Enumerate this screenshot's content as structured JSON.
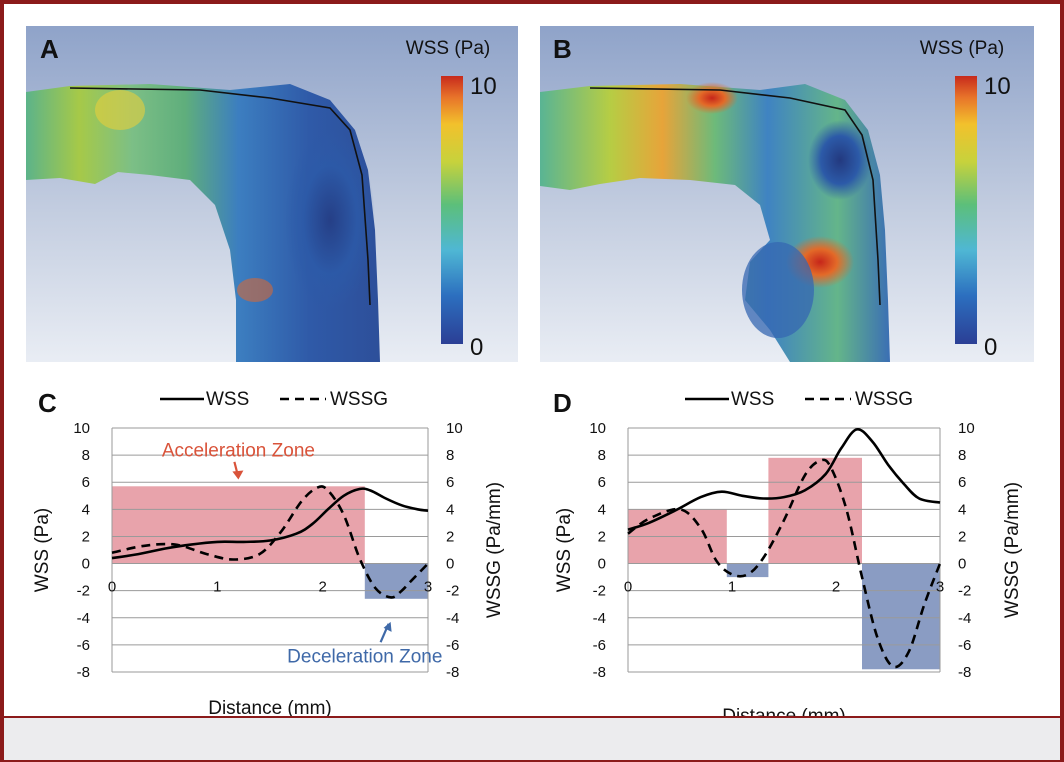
{
  "render_panels": [
    {
      "letter": "A",
      "colorbar_title": "WSS (Pa)",
      "colorbar_max": "10",
      "colorbar_min": "0"
    },
    {
      "letter": "B",
      "colorbar_title": "WSS (Pa)",
      "colorbar_max": "10",
      "colorbar_min": "0"
    }
  ],
  "colors": {
    "wss_line": "#000000",
    "acceleration_fill": "#e8a3ab",
    "deceleration_fill": "#8a9cc3",
    "acceleration_text": "#d9533a",
    "deceleration_text": "#3f69a8",
    "border": "#8b1a1a"
  },
  "chart_data": [
    {
      "panel": "C",
      "type": "line",
      "legend": [
        "WSS",
        "WSSG"
      ],
      "legend_placement": "top-center",
      "xlabel": "Distance (mm)",
      "ylabel": "WSS (Pa)",
      "y2label": "WSSG (Pa/mm)",
      "xlim": [
        0,
        3
      ],
      "ylim": [
        -8,
        10
      ],
      "y2lim": [
        -8,
        10
      ],
      "x_ticks": [
        "0",
        "1",
        "2",
        "3"
      ],
      "y_ticks": [
        "10",
        "8",
        "6",
        "4",
        "2",
        "0",
        "-2",
        "-4",
        "-6",
        "-8"
      ],
      "y2_ticks": [
        "10",
        "8",
        "6",
        "4",
        "2",
        "0",
        "-2",
        "-4",
        "-6",
        "-8"
      ],
      "grid": true,
      "series": [
        {
          "name": "WSS",
          "style": "solid",
          "x": [
            0,
            0.25,
            0.5,
            0.75,
            1.0,
            1.25,
            1.5,
            1.75,
            1.9,
            2.05,
            2.2,
            2.35,
            2.45,
            2.6,
            2.75,
            2.9,
            3.0
          ],
          "y": [
            0.4,
            0.7,
            1.1,
            1.4,
            1.6,
            1.6,
            1.7,
            2.2,
            2.9,
            4.0,
            5.0,
            5.5,
            5.4,
            4.8,
            4.3,
            4.0,
            3.9
          ]
        },
        {
          "name": "WSSG",
          "style": "dashed",
          "x": [
            0,
            0.3,
            0.6,
            0.9,
            1.15,
            1.4,
            1.6,
            1.8,
            1.95,
            2.05,
            2.2,
            2.35,
            2.5,
            2.65,
            2.75,
            2.85,
            3.0
          ],
          "y": [
            0.8,
            1.3,
            1.4,
            0.7,
            0.3,
            0.7,
            2.3,
            4.6,
            5.6,
            5.4,
            3.6,
            0.4,
            -1.8,
            -2.5,
            -2.0,
            -1.2,
            0.0
          ]
        }
      ],
      "zones": [
        {
          "label": "Acceleration Zone",
          "x": [
            0,
            2.4
          ],
          "y": [
            0,
            5.7
          ],
          "color": "acceleration"
        },
        {
          "label": "Deceleration Zone",
          "x": [
            2.4,
            3.0
          ],
          "y": [
            -2.6,
            0
          ],
          "color": "deceleration"
        }
      ]
    },
    {
      "panel": "D",
      "type": "line",
      "legend": [
        "WSS",
        "WSSG"
      ],
      "legend_placement": "top-center",
      "xlabel": "Distance (mm)",
      "ylabel": "WSS (Pa)",
      "y2label": "WSSG (Pa/mm)",
      "xlim": [
        0,
        3
      ],
      "ylim": [
        -8,
        10
      ],
      "y2lim": [
        -8,
        10
      ],
      "x_ticks": [
        "0",
        "1",
        "2",
        "3"
      ],
      "y_ticks": [
        "10",
        "8",
        "6",
        "4",
        "2",
        "0",
        "-2",
        "-4",
        "-6",
        "-8"
      ],
      "y2_ticks": [
        "10",
        "8",
        "6",
        "4",
        "2",
        "0",
        "-2",
        "-4",
        "-6",
        "-8"
      ],
      "grid": true,
      "series": [
        {
          "name": "WSS",
          "style": "solid",
          "x": [
            0,
            0.2,
            0.45,
            0.7,
            0.9,
            1.1,
            1.3,
            1.5,
            1.7,
            1.9,
            2.05,
            2.2,
            2.35,
            2.5,
            2.65,
            2.8,
            3.0
          ],
          "y": [
            2.5,
            3.0,
            3.9,
            4.9,
            5.3,
            5.0,
            4.8,
            4.9,
            5.4,
            6.6,
            8.5,
            9.9,
            9.0,
            7.3,
            5.9,
            4.8,
            4.5
          ]
        },
        {
          "name": "WSSG",
          "style": "dashed",
          "x": [
            0,
            0.2,
            0.5,
            0.7,
            0.85,
            1.0,
            1.15,
            1.3,
            1.5,
            1.7,
            1.85,
            1.95,
            2.1,
            2.25,
            2.4,
            2.55,
            2.7,
            2.85,
            3.0
          ],
          "y": [
            2.2,
            3.3,
            4.0,
            2.6,
            0.2,
            -0.8,
            -0.8,
            0.4,
            3.2,
            6.5,
            7.6,
            7.1,
            4.0,
            -1.0,
            -5.5,
            -7.6,
            -6.5,
            -3.0,
            0.0
          ]
        }
      ],
      "zones": [
        {
          "label": "",
          "x": [
            0,
            0.95
          ],
          "y": [
            0,
            4.0
          ],
          "color": "acceleration"
        },
        {
          "label": "",
          "x": [
            0.95,
            1.35
          ],
          "y": [
            -1.0,
            0
          ],
          "color": "deceleration"
        },
        {
          "label": "",
          "x": [
            1.35,
            2.25
          ],
          "y": [
            0,
            7.8
          ],
          "color": "acceleration"
        },
        {
          "label": "",
          "x": [
            2.25,
            3.0
          ],
          "y": [
            -7.8,
            0
          ],
          "color": "deceleration"
        }
      ]
    }
  ]
}
